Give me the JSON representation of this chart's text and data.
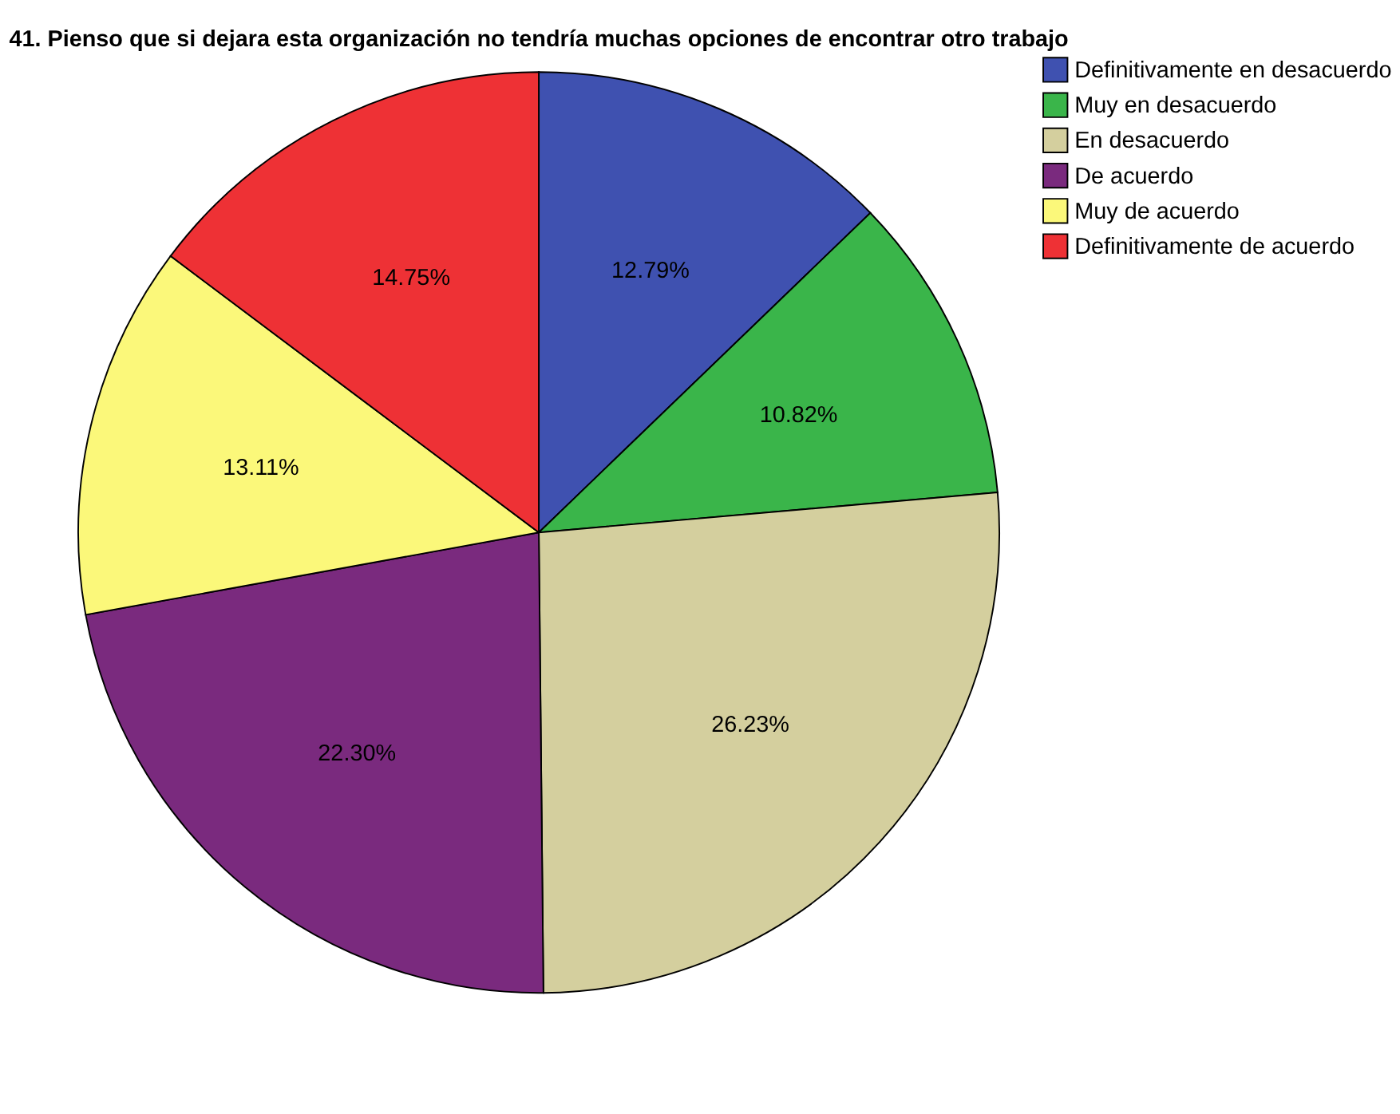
{
  "chart_data": {
    "type": "pie",
    "title": "41. Pienso que si dejara esta organización no tendría muchas opciones de encontrar otro trabajo",
    "categories": [
      "Definitivamente en desacuerdo",
      "Muy en desacuerdo",
      "En desacuerdo",
      "De acuerdo",
      "Muy de acuerdo",
      "Definitivamente de acuerdo"
    ],
    "values": [
      12.79,
      10.82,
      26.23,
      22.3,
      13.11,
      14.75
    ],
    "value_labels": [
      "12.79%",
      "10.82%",
      "26.23%",
      "22.30%",
      "13.11%",
      "14.75%"
    ],
    "colors": [
      "#3f51b0",
      "#3ab54a",
      "#d4cf9e",
      "#7a2a7e",
      "#fbf87a",
      "#ee3135"
    ],
    "legend": "top right"
  }
}
